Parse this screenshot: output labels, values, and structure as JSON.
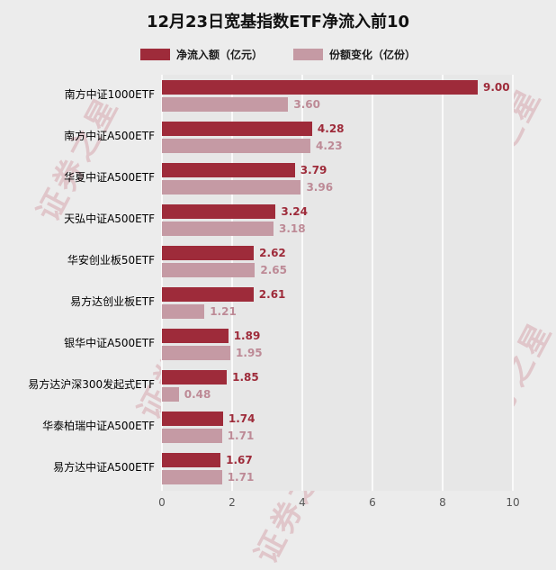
{
  "title": "12月23日宽基指数ETF净流入前10",
  "watermark": "证券之星",
  "chart_data": {
    "type": "bar",
    "orientation": "horizontal",
    "title": "12月23日宽基指数ETF净流入前10",
    "categories": [
      "南方中证1000ETF",
      "南方中证A500ETF",
      "华夏中证A500ETF",
      "天弘中证A500ETF",
      "华安创业板50ETF",
      "易方达创业板ETF",
      "银华中证A500ETF",
      "易方达沪深300发起式ETF",
      "华泰柏瑞中证A500ETF",
      "易方达中证A500ETF"
    ],
    "series": [
      {
        "name": "净流入额（亿元）",
        "color": "#9e2b3a",
        "label_color": "#9e2b3a",
        "values": [
          9.0,
          4.28,
          3.79,
          3.24,
          2.62,
          2.61,
          1.89,
          1.85,
          1.74,
          1.67
        ]
      },
      {
        "name": "份额变化（亿份）",
        "color": "#c59aa4",
        "label_color": "#bd8a96",
        "values": [
          3.6,
          4.23,
          3.96,
          3.18,
          2.65,
          1.21,
          1.95,
          0.48,
          1.71,
          1.71
        ]
      }
    ],
    "xlim": [
      0,
      10
    ],
    "xticks": [
      0,
      2,
      4,
      6,
      8,
      10
    ],
    "legend_position": "top",
    "grid": "vertical"
  }
}
